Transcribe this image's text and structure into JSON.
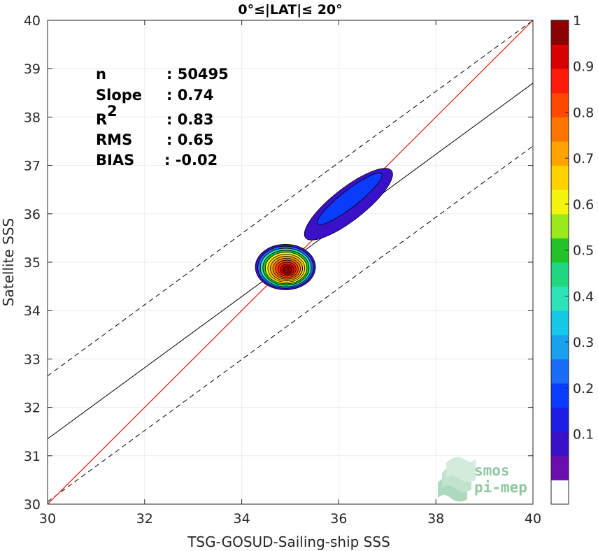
{
  "chart_data": {
    "type": "contour",
    "title": "0°≤|LAT|≤ 20°",
    "xlabel": "TSG-GOSUD-Sailing-ship SSS",
    "ylabel": "Satellite SSS",
    "xlim": [
      30,
      40
    ],
    "ylim": [
      30,
      40
    ],
    "xticks": [
      "30",
      "32",
      "34",
      "36",
      "38",
      "40"
    ],
    "yticks": [
      "30",
      "31",
      "32",
      "33",
      "34",
      "35",
      "36",
      "37",
      "38",
      "39",
      "40"
    ],
    "stats": [
      {
        "label": "n",
        "value": ": 50495"
      },
      {
        "label": "Slope",
        "value": ": 0.74"
      },
      {
        "label": "R",
        "sup": "2",
        "value": ": 0.83"
      },
      {
        "label": "RMS",
        "value": ": 0.65"
      },
      {
        "label": "BIAS",
        "value": ": -0.02"
      }
    ],
    "identity_line": {
      "from": [
        30,
        30
      ],
      "to": [
        40,
        40
      ],
      "color": "#e8251b"
    },
    "regression_line": {
      "from": [
        30,
        31.35
      ],
      "to": [
        40,
        38.7
      ],
      "color": "#000000"
    },
    "envelope_lines": [
      {
        "from": [
          30,
          32.65
        ],
        "to": [
          40,
          40.0
        ],
        "style": "dashed"
      },
      {
        "from": [
          30,
          30.05
        ],
        "to": [
          40,
          37.4
        ],
        "style": "dashed"
      }
    ],
    "density_peaks": [
      {
        "name": "primary",
        "center": [
          34.9,
          34.9
        ],
        "max_density": 1.0
      },
      {
        "name": "secondary",
        "center": [
          36.2,
          36.2
        ],
        "max_density": 0.25
      }
    ],
    "colorbar": {
      "ticks": [
        "0.1",
        "0.2",
        "0.3",
        "0.4",
        "0.5",
        "0.6",
        "0.7",
        "0.8",
        "0.9",
        "1"
      ],
      "colors": [
        "#ffffff",
        "#6a0fae",
        "#3a10c8",
        "#1d1de6",
        "#0a3cff",
        "#1a6cf5",
        "#1aa2ee",
        "#17c7e8",
        "#2ee3b9",
        "#20d67e",
        "#22c22a",
        "#9be81b",
        "#f4f40f",
        "#ffd200",
        "#ffa300",
        "#ff7500",
        "#ff4800",
        "#ff1a0a",
        "#d90000",
        "#8b0000"
      ]
    },
    "logo": {
      "line1": "smos",
      "line2": "pi-mep"
    }
  }
}
